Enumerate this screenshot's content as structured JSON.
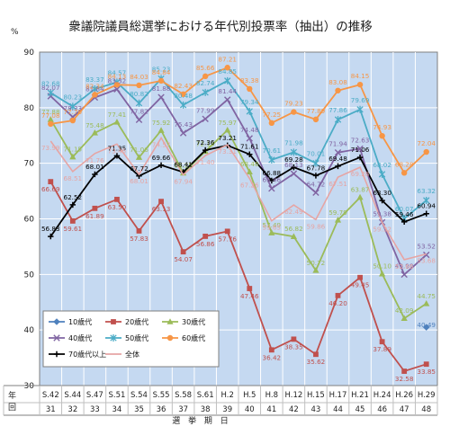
{
  "chart_data": {
    "type": "line",
    "title": "衆議院議員総選挙における年代別投票率（抽出）の推移",
    "ylabel": "%",
    "xlabel": "選 挙 期 日",
    "ylim": [
      30,
      90
    ],
    "yticks": [
      "30",
      "40",
      "50",
      "60",
      "70",
      "80",
      "90"
    ],
    "row_label_year": "年",
    "row_label_round": "回",
    "x": [
      "S.42",
      "S.44",
      "S.47",
      "S.51",
      "S.54",
      "S.55",
      "S.58",
      "S.61",
      "H.2",
      "H.5",
      "H.8",
      "H.12",
      "H.15",
      "H.17",
      "H.21",
      "H.24",
      "H.26",
      "H.29"
    ],
    "rounds": [
      "31",
      "32",
      "33",
      "34",
      "35",
      "36",
      "37",
      "38",
      "39",
      "40",
      "41",
      "42",
      "43",
      "44",
      "45",
      "46",
      "47",
      "48"
    ],
    "grid": true,
    "legend_position": "bottom-left",
    "plot_background": "#c5d9f1",
    "series": [
      {
        "name": "10歳代",
        "color": "#4f81bd",
        "marker": "diamond",
        "values": [
          null,
          null,
          null,
          null,
          null,
          null,
          null,
          null,
          null,
          null,
          null,
          null,
          null,
          null,
          null,
          null,
          null,
          40.49
        ],
        "labels": [
          "",
          "",
          "",
          "",
          "",
          "",
          "",
          "",
          "",
          "",
          "",
          "",
          "",
          "",
          "",
          "",
          "",
          "40.49"
        ]
      },
      {
        "name": "20歳代",
        "color": "#c0504d",
        "marker": "square",
        "values": [
          66.69,
          59.61,
          61.89,
          63.5,
          57.83,
          63.13,
          54.07,
          56.86,
          57.76,
          47.46,
          36.42,
          38.35,
          35.62,
          46.2,
          49.45,
          37.89,
          32.58,
          33.85
        ],
        "labels": [
          "66.69",
          "59.61",
          "61.89",
          "63.50",
          "57.83",
          "63.13",
          "54.07",
          "56.86",
          "57.76",
          "47.46",
          "36.42",
          "38.35",
          "35.62",
          "46.20",
          "49.45",
          "37.89",
          "32.58",
          "33.85"
        ]
      },
      {
        "name": "30歳代",
        "color": "#9bbb59",
        "marker": "triangle",
        "values": [
          77.88,
          71.15,
          75.48,
          77.41,
          71.06,
          75.92,
          68.25,
          72.15,
          75.97,
          68.46,
          57.49,
          56.82,
          50.72,
          59.79,
          63.87,
          50.1,
          42.09,
          44.75
        ],
        "labels": [
          "77.88",
          "71.15",
          "75.48",
          "77.41",
          "71.06",
          "75.92",
          "68.25",
          "72.15",
          "75.97",
          "68.46",
          "57.49",
          "56.82",
          "50.72",
          "59.79",
          "63.87",
          "50.10",
          "42.09",
          "44.75"
        ]
      },
      {
        "name": "40歳代",
        "color": "#8064a2",
        "marker": "x",
        "values": [
          82.07,
          78.33,
          81.84,
          83.32,
          77.82,
          81.88,
          75.43,
          77.99,
          81.44,
          74.48,
          65.46,
          68.13,
          64.72,
          71.94,
          72.63,
          59.38,
          49.98,
          53.52
        ],
        "labels": [
          "82.07",
          "78.33",
          "81.84",
          "83.32",
          "77.82",
          "81.88",
          "75.43",
          "77.99",
          "81.44",
          "74.48",
          "65.46",
          "68.13",
          "64.72",
          "71.94",
          "72.63",
          "59.38",
          "49.98",
          "53.52"
        ]
      },
      {
        "name": "50歳代",
        "color": "#4bacc6",
        "marker": "star",
        "values": [
          82.68,
          80.23,
          83.37,
          84.57,
          80.82,
          85.23,
          80.48,
          82.74,
          84.85,
          79.34,
          70.61,
          71.98,
          70.01,
          77.86,
          79.69,
          68.02,
          60.07,
          63.32
        ],
        "labels": [
          "82.68",
          "80.23",
          "83.37",
          "84.57",
          "80.82",
          "85.23",
          "80.48",
          "82.74",
          "84.85",
          "79.34",
          "70.61",
          "71.98",
          "70.01",
          "77.86",
          "79.69",
          "68.02",
          "60.07",
          "63.32"
        ]
      },
      {
        "name": "60歳代",
        "color": "#f79646",
        "marker": "circle",
        "values": [
          77.08,
          77.7,
          82.34,
          84.13,
          84.03,
          84.84,
          82.43,
          85.66,
          87.21,
          83.38,
          77.25,
          79.23,
          77.89,
          83.08,
          84.15,
          74.93,
          68.28,
          72.04
        ],
        "labels": [
          "77.08",
          "77.70",
          "82.34",
          "84.13",
          "84.03",
          "84.84",
          "82.43",
          "85.66",
          "87.21",
          "83.38",
          "77.25",
          "79.23",
          "77.89",
          "83.08",
          "84.15",
          "74.93",
          "68.28",
          "72.04"
        ]
      },
      {
        "name": "70歳代以上",
        "color": "#000000",
        "marker": "plus",
        "values": [
          56.83,
          62.52,
          68.01,
          71.35,
          67.72,
          69.66,
          68.41,
          72.36,
          73.21,
          71.61,
          66.88,
          69.28,
          67.78,
          69.48,
          71.06,
          63.3,
          59.46,
          60.94
        ],
        "labels": [
          "56.83",
          "62.52",
          "68.01",
          "71.35",
          "67.72",
          "69.66",
          "68.41",
          "72.36",
          "73.21",
          "71.61",
          "66.88",
          "69.28",
          "67.78",
          "69.48",
          "71.06",
          "63.30",
          "59.46",
          "60.94"
        ]
      },
      {
        "name": "全体",
        "color": "#e6a5a4",
        "marker": "none",
        "values": [
          73.99,
          68.51,
          71.76,
          73.45,
          68.01,
          74.57,
          67.94,
          71.4,
          73.31,
          67.26,
          59.65,
          62.49,
          59.86,
          67.51,
          69.28,
          59.32,
          52.66,
          53.68
        ],
        "labels": [
          "73.99",
          "68.51",
          "71.76",
          "73.45",
          "68.01",
          "74.57",
          "67.94",
          "71.40",
          "73.31",
          "67.26",
          "59.65",
          "62.49",
          "59.86",
          "67.51",
          "69.28",
          "59.32",
          "52.66",
          "53.68"
        ]
      }
    ]
  }
}
